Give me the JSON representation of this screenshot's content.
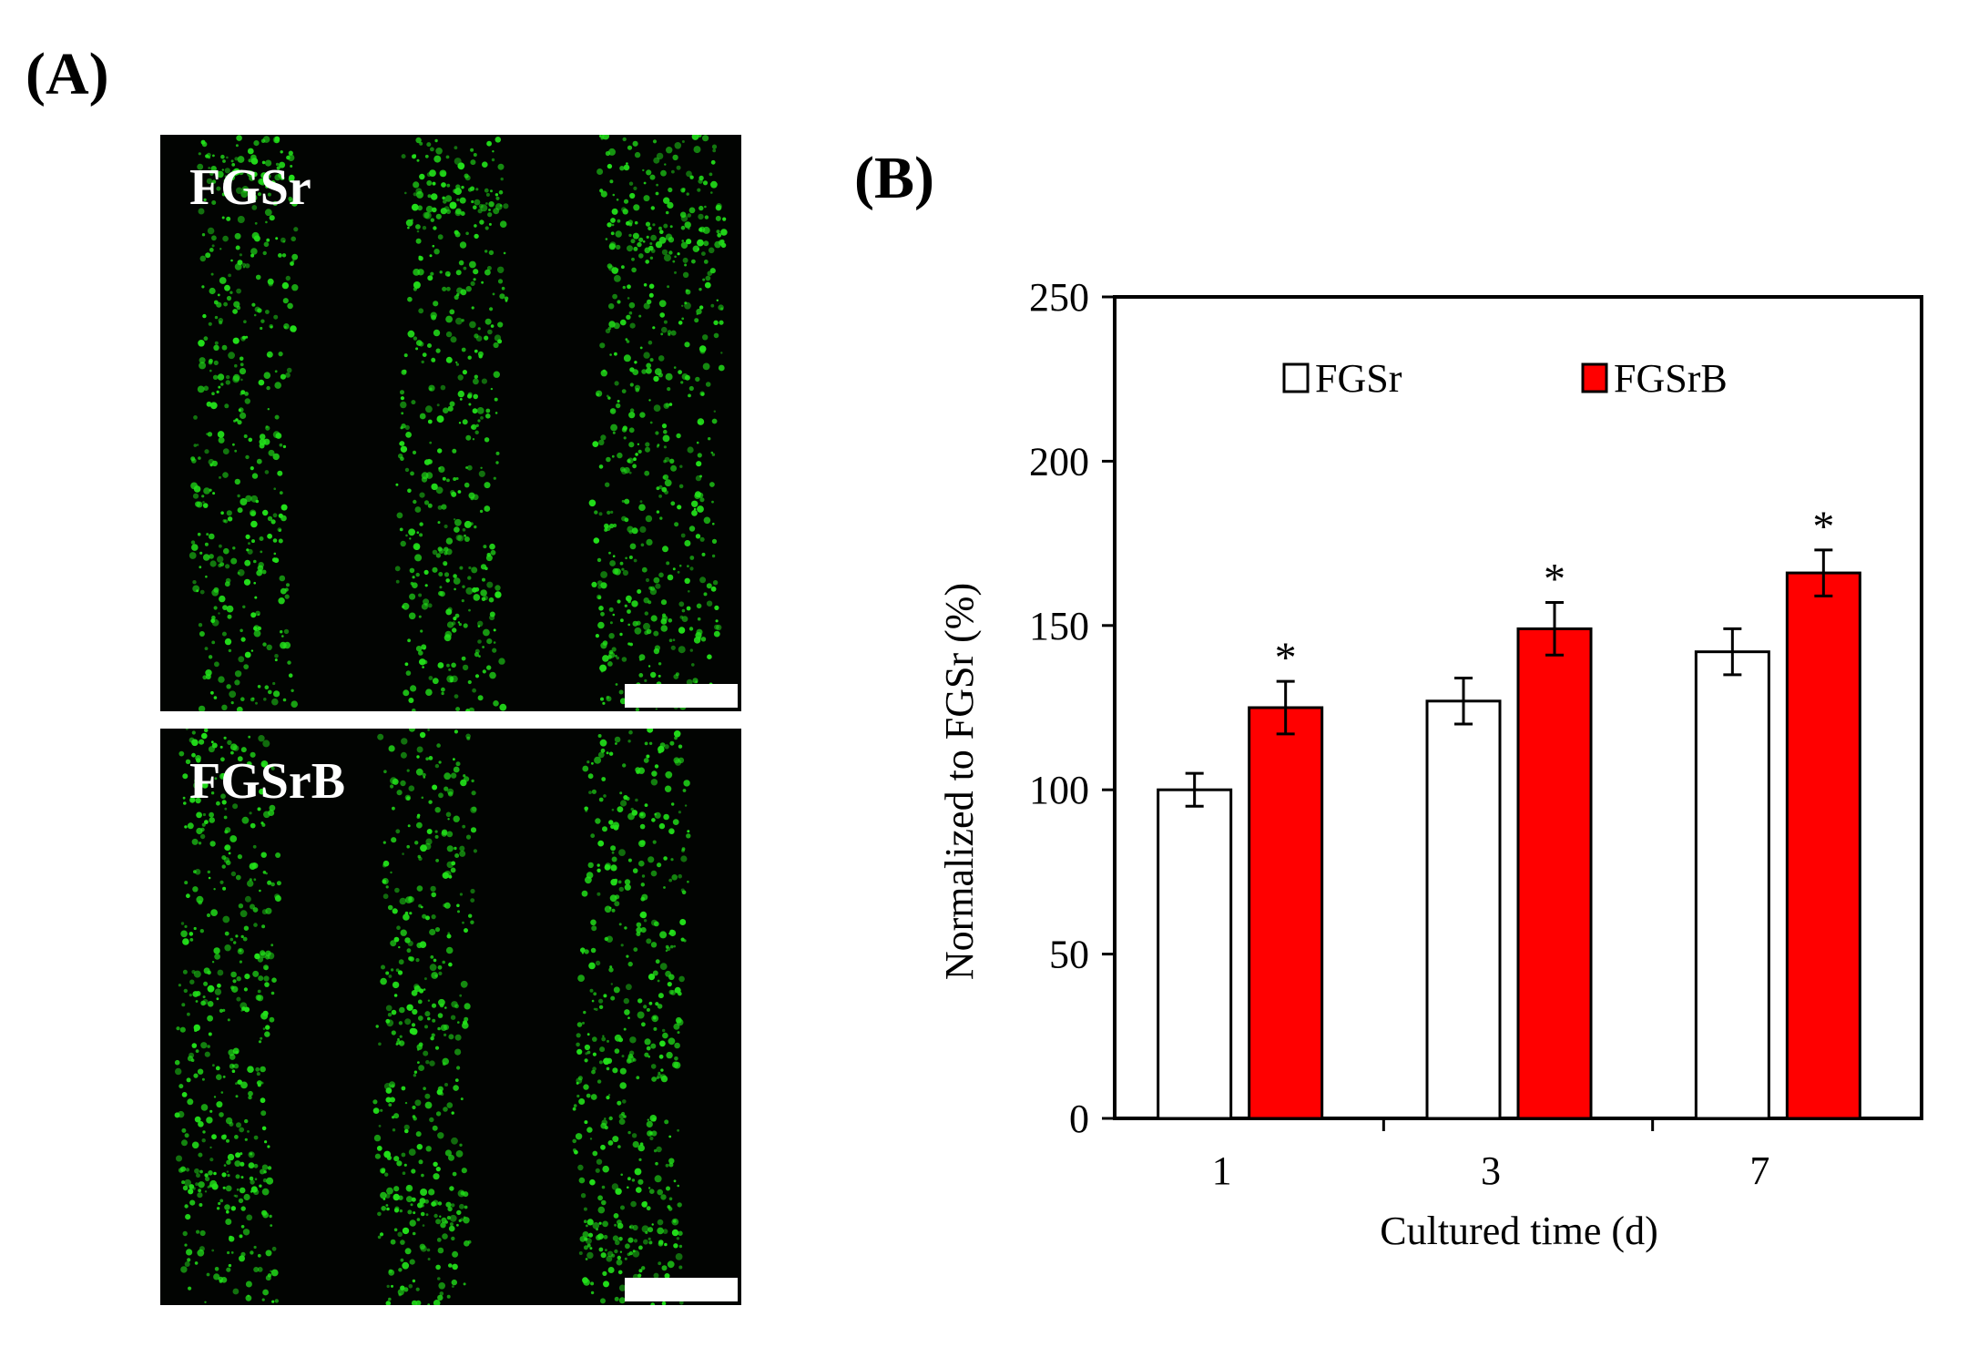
{
  "panels": {
    "a_label": "(A)",
    "b_label": "(B)"
  },
  "micrographs": {
    "top_label": "FGSr",
    "bottom_label": "FGSrB",
    "background_color": "#020402",
    "cell_color": "#22e01a"
  },
  "chart_data": {
    "type": "bar",
    "title": "",
    "xlabel": "Cultured time (d)",
    "ylabel": "Normalized to FGSr (%)",
    "ylim": [
      0,
      250
    ],
    "yticks": [
      0,
      50,
      100,
      150,
      200,
      250
    ],
    "categories": [
      "1",
      "3",
      "7"
    ],
    "legend_position": "top",
    "series": [
      {
        "name": "FGSr",
        "color": "#ffffff",
        "values": [
          100,
          127,
          142
        ],
        "errors": [
          5,
          7,
          7
        ]
      },
      {
        "name": "FGSrB",
        "color": "#ff0000",
        "values": [
          125,
          149,
          166
        ],
        "errors": [
          8,
          8,
          7
        ]
      }
    ],
    "annotations": [
      {
        "category": "1",
        "series": "FGSrB",
        "text": "*"
      },
      {
        "category": "3",
        "series": "FGSrB",
        "text": "*"
      },
      {
        "category": "7",
        "series": "FGSrB",
        "text": "*"
      }
    ]
  }
}
